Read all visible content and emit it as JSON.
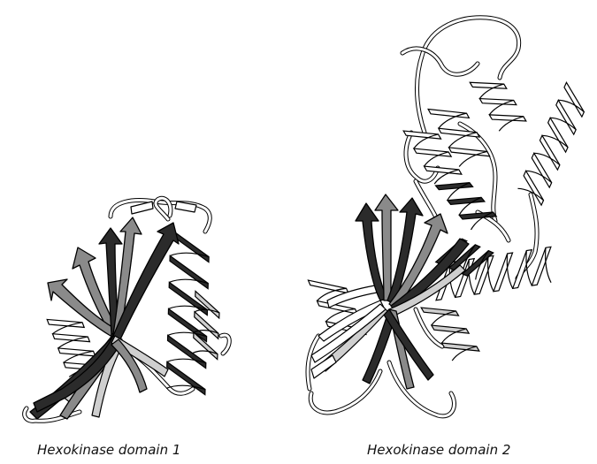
{
  "captions": {
    "domain1": "Hexokinase domain 1",
    "domain2": "Hexokinase domain 2"
  },
  "colors": {
    "dark": "#2b2b2b",
    "mid": "#8a8a8a",
    "light": "#cfcfcf",
    "outline": "#000000"
  }
}
